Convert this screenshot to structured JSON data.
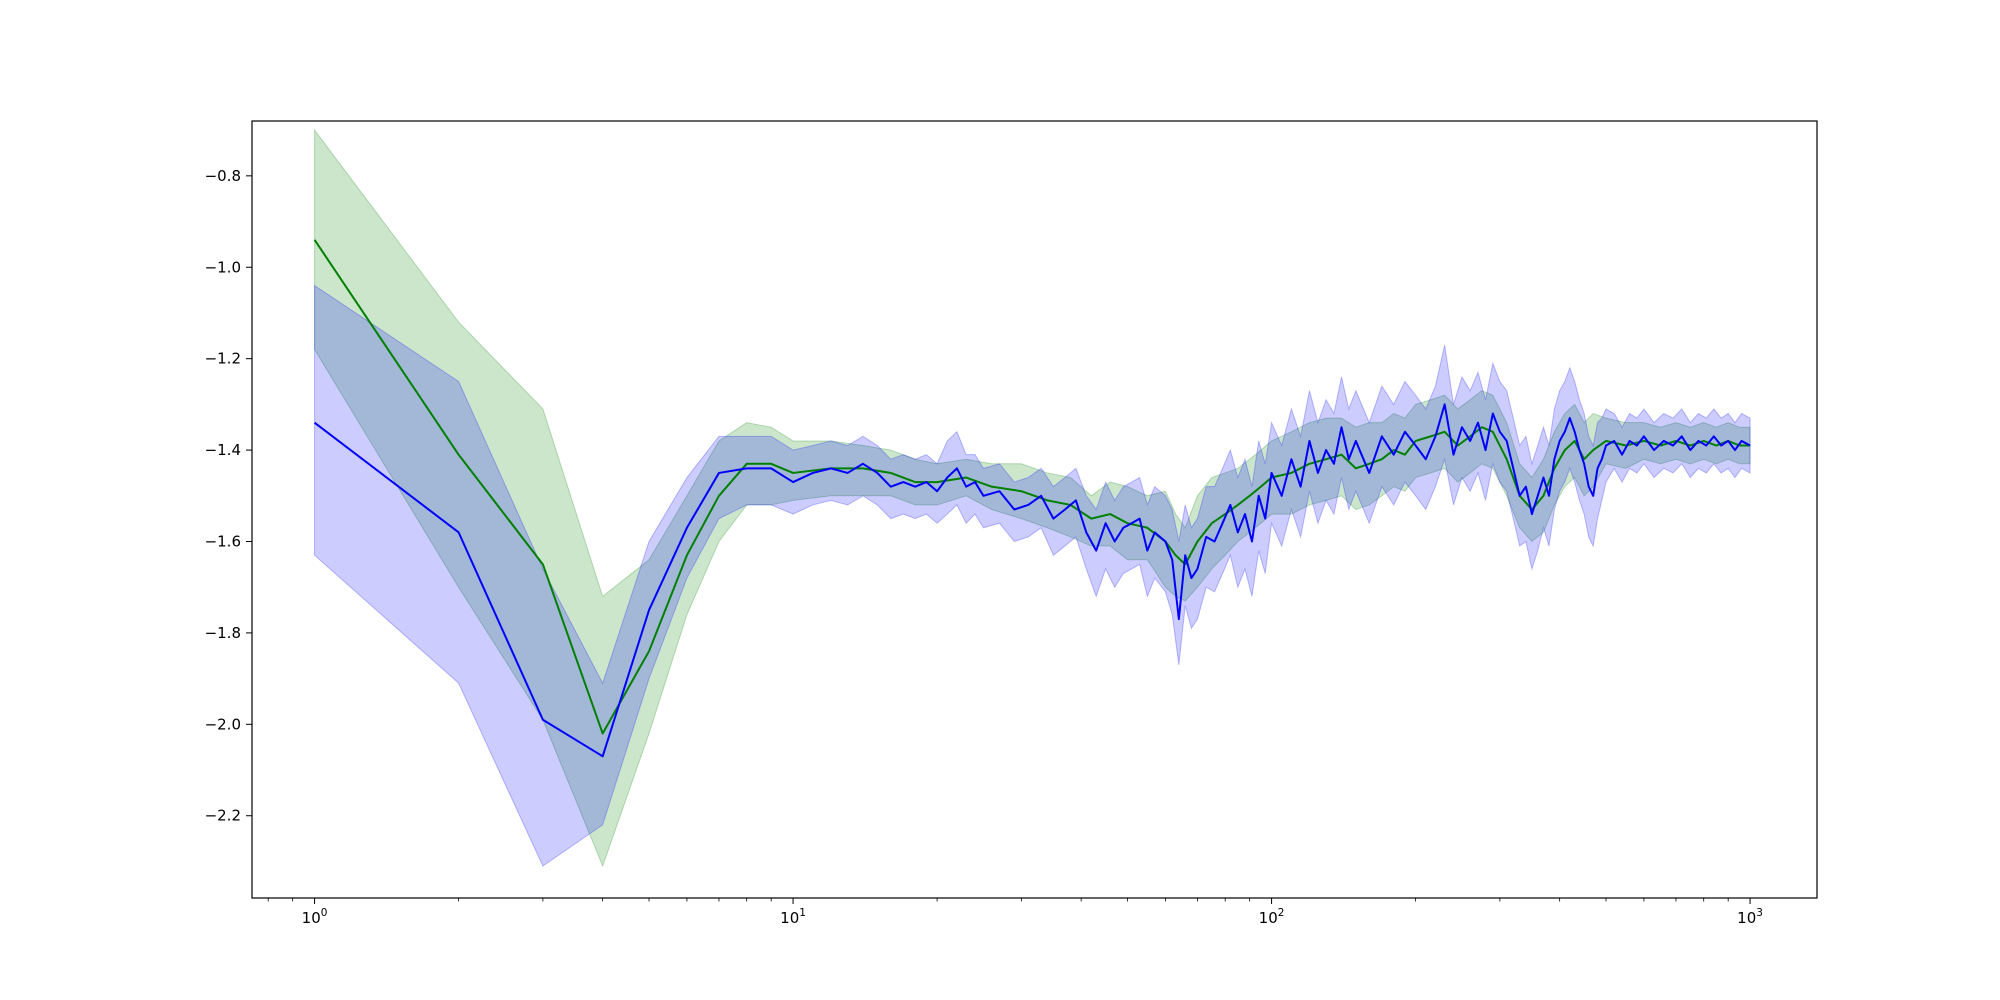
{
  "chart_data": {
    "type": "line",
    "title": "",
    "xlabel": "",
    "ylabel": "",
    "x_scale": "log",
    "xlim": [
      0.74,
      1380
    ],
    "ylim": [
      -2.38,
      -0.68
    ],
    "grid": false,
    "x_ticks": [
      {
        "value": 1,
        "base": "10",
        "exp": "0"
      },
      {
        "value": 10,
        "base": "10",
        "exp": "1"
      },
      {
        "value": 100,
        "base": "10",
        "exp": "2"
      },
      {
        "value": 1000,
        "base": "10",
        "exp": "3"
      }
    ],
    "y_ticks": [
      {
        "value": -0.8,
        "label": "−0.8"
      },
      {
        "value": -1.0,
        "label": "−1.0"
      },
      {
        "value": -1.2,
        "label": "−1.2"
      },
      {
        "value": -1.4,
        "label": "−1.4"
      },
      {
        "value": -1.6,
        "label": "−1.6"
      },
      {
        "value": -1.8,
        "label": "−1.8"
      },
      {
        "value": -2.0,
        "label": "−2.0"
      },
      {
        "value": -2.2,
        "label": "−2.2"
      }
    ],
    "series": [
      {
        "color": "#008000",
        "band_color": "#008000",
        "band_opacity": 0.2,
        "x": [
          1,
          2,
          3,
          4,
          5,
          6,
          7,
          8,
          9,
          10,
          12,
          14,
          16,
          18,
          20,
          23,
          26,
          30,
          34,
          38,
          42,
          46,
          50,
          55,
          60,
          63,
          66,
          70,
          75,
          80,
          85,
          90,
          95,
          100,
          110,
          120,
          130,
          140,
          150,
          160,
          170,
          180,
          190,
          200,
          215,
          230,
          245,
          260,
          275,
          290,
          310,
          330,
          350,
          370,
          390,
          410,
          430,
          450,
          470,
          500,
          550,
          600,
          650,
          700,
          750,
          800,
          850,
          900,
          950,
          1000
        ],
        "mean": [
          -0.94,
          -1.41,
          -1.65,
          -2.02,
          -1.84,
          -1.63,
          -1.5,
          -1.43,
          -1.43,
          -1.45,
          -1.44,
          -1.44,
          -1.45,
          -1.47,
          -1.47,
          -1.46,
          -1.48,
          -1.49,
          -1.51,
          -1.52,
          -1.55,
          -1.54,
          -1.56,
          -1.57,
          -1.6,
          -1.63,
          -1.65,
          -1.6,
          -1.56,
          -1.54,
          -1.52,
          -1.5,
          -1.48,
          -1.46,
          -1.45,
          -1.43,
          -1.42,
          -1.41,
          -1.44,
          -1.43,
          -1.42,
          -1.4,
          -1.41,
          -1.38,
          -1.37,
          -1.36,
          -1.39,
          -1.37,
          -1.35,
          -1.36,
          -1.42,
          -1.5,
          -1.53,
          -1.5,
          -1.44,
          -1.4,
          -1.38,
          -1.42,
          -1.4,
          -1.38,
          -1.39,
          -1.38,
          -1.39,
          -1.38,
          -1.39,
          -1.38,
          -1.39,
          -1.38,
          -1.39,
          -1.39
        ],
        "upper": [
          -0.7,
          -1.12,
          -1.31,
          -1.72,
          -1.64,
          -1.5,
          -1.38,
          -1.34,
          -1.35,
          -1.38,
          -1.38,
          -1.39,
          -1.4,
          -1.42,
          -1.43,
          -1.42,
          -1.43,
          -1.43,
          -1.45,
          -1.46,
          -1.5,
          -1.47,
          -1.48,
          -1.5,
          -1.49,
          -1.54,
          -1.57,
          -1.5,
          -1.46,
          -1.45,
          -1.44,
          -1.42,
          -1.4,
          -1.38,
          -1.36,
          -1.34,
          -1.33,
          -1.33,
          -1.35,
          -1.34,
          -1.34,
          -1.32,
          -1.33,
          -1.3,
          -1.29,
          -1.28,
          -1.31,
          -1.29,
          -1.27,
          -1.28,
          -1.34,
          -1.43,
          -1.46,
          -1.42,
          -1.36,
          -1.32,
          -1.3,
          -1.34,
          -1.32,
          -1.33,
          -1.34,
          -1.34,
          -1.35,
          -1.34,
          -1.35,
          -1.34,
          -1.35,
          -1.34,
          -1.35,
          -1.35
        ],
        "lower": [
          -1.18,
          -1.7,
          -1.99,
          -2.31,
          -2.02,
          -1.76,
          -1.6,
          -1.52,
          -1.52,
          -1.51,
          -1.5,
          -1.5,
          -1.5,
          -1.52,
          -1.52,
          -1.5,
          -1.53,
          -1.55,
          -1.57,
          -1.59,
          -1.61,
          -1.61,
          -1.64,
          -1.64,
          -1.7,
          -1.72,
          -1.73,
          -1.7,
          -1.66,
          -1.63,
          -1.6,
          -1.58,
          -1.56,
          -1.54,
          -1.54,
          -1.52,
          -1.51,
          -1.5,
          -1.53,
          -1.52,
          -1.5,
          -1.48,
          -1.49,
          -1.46,
          -1.45,
          -1.44,
          -1.47,
          -1.45,
          -1.43,
          -1.44,
          -1.5,
          -1.57,
          -1.6,
          -1.58,
          -1.52,
          -1.48,
          -1.46,
          -1.5,
          -1.48,
          -1.43,
          -1.44,
          -1.42,
          -1.43,
          -1.42,
          -1.43,
          -1.42,
          -1.43,
          -1.42,
          -1.43,
          -1.43
        ]
      },
      {
        "color": "#0000ff",
        "band_color": "#0000ff",
        "band_opacity": 0.2,
        "x": [
          1,
          2,
          3,
          4,
          5,
          6,
          7,
          8,
          9,
          10,
          11,
          12,
          13,
          14,
          15,
          16,
          17,
          18,
          19,
          20,
          21,
          22,
          23,
          24,
          25,
          27,
          29,
          31,
          33,
          35,
          37,
          39,
          41,
          43,
          45,
          47,
          49,
          51,
          53,
          55,
          57,
          60,
          62,
          64,
          66,
          68,
          70,
          73,
          76,
          79,
          82,
          85,
          88,
          91,
          94,
          97,
          100,
          105,
          110,
          115,
          120,
          125,
          130,
          135,
          140,
          145,
          150,
          160,
          170,
          180,
          190,
          200,
          210,
          220,
          230,
          240,
          250,
          260,
          270,
          280,
          290,
          300,
          310,
          320,
          330,
          340,
          350,
          360,
          370,
          380,
          390,
          400,
          410,
          420,
          430,
          440,
          450,
          460,
          470,
          480,
          490,
          500,
          520,
          540,
          560,
          580,
          600,
          630,
          660,
          690,
          720,
          750,
          780,
          810,
          840,
          870,
          900,
          930,
          960,
          1000
        ],
        "mean": [
          -1.34,
          -1.58,
          -1.99,
          -2.07,
          -1.75,
          -1.57,
          -1.45,
          -1.44,
          -1.44,
          -1.47,
          -1.45,
          -1.44,
          -1.45,
          -1.43,
          -1.45,
          -1.48,
          -1.47,
          -1.48,
          -1.47,
          -1.49,
          -1.46,
          -1.44,
          -1.48,
          -1.47,
          -1.5,
          -1.49,
          -1.53,
          -1.52,
          -1.5,
          -1.55,
          -1.53,
          -1.51,
          -1.58,
          -1.62,
          -1.56,
          -1.6,
          -1.57,
          -1.56,
          -1.55,
          -1.62,
          -1.58,
          -1.6,
          -1.64,
          -1.77,
          -1.63,
          -1.68,
          -1.66,
          -1.59,
          -1.6,
          -1.56,
          -1.52,
          -1.58,
          -1.54,
          -1.6,
          -1.5,
          -1.55,
          -1.45,
          -1.5,
          -1.42,
          -1.48,
          -1.38,
          -1.45,
          -1.4,
          -1.43,
          -1.35,
          -1.42,
          -1.38,
          -1.45,
          -1.37,
          -1.41,
          -1.36,
          -1.39,
          -1.42,
          -1.37,
          -1.3,
          -1.41,
          -1.35,
          -1.38,
          -1.34,
          -1.4,
          -1.32,
          -1.36,
          -1.38,
          -1.44,
          -1.5,
          -1.48,
          -1.54,
          -1.5,
          -1.46,
          -1.5,
          -1.42,
          -1.38,
          -1.36,
          -1.33,
          -1.36,
          -1.4,
          -1.43,
          -1.48,
          -1.5,
          -1.44,
          -1.42,
          -1.39,
          -1.38,
          -1.41,
          -1.38,
          -1.39,
          -1.37,
          -1.4,
          -1.38,
          -1.39,
          -1.37,
          -1.4,
          -1.38,
          -1.39,
          -1.37,
          -1.39,
          -1.38,
          -1.4,
          -1.38,
          -1.39
        ],
        "upper": [
          -1.04,
          -1.25,
          -1.66,
          -1.91,
          -1.6,
          -1.46,
          -1.37,
          -1.37,
          -1.37,
          -1.4,
          -1.39,
          -1.38,
          -1.39,
          -1.37,
          -1.39,
          -1.42,
          -1.41,
          -1.42,
          -1.41,
          -1.43,
          -1.38,
          -1.36,
          -1.41,
          -1.41,
          -1.44,
          -1.43,
          -1.47,
          -1.46,
          -1.44,
          -1.48,
          -1.46,
          -1.44,
          -1.5,
          -1.53,
          -1.47,
          -1.51,
          -1.48,
          -1.47,
          -1.46,
          -1.52,
          -1.48,
          -1.5,
          -1.53,
          -1.6,
          -1.52,
          -1.57,
          -1.55,
          -1.48,
          -1.48,
          -1.44,
          -1.4,
          -1.46,
          -1.42,
          -1.48,
          -1.38,
          -1.43,
          -1.34,
          -1.39,
          -1.31,
          -1.37,
          -1.27,
          -1.34,
          -1.29,
          -1.32,
          -1.24,
          -1.31,
          -1.27,
          -1.34,
          -1.26,
          -1.3,
          -1.25,
          -1.28,
          -1.31,
          -1.26,
          -1.17,
          -1.3,
          -1.24,
          -1.27,
          -1.23,
          -1.29,
          -1.21,
          -1.25,
          -1.27,
          -1.33,
          -1.39,
          -1.37,
          -1.43,
          -1.39,
          -1.35,
          -1.39,
          -1.31,
          -1.27,
          -1.25,
          -1.22,
          -1.25,
          -1.29,
          -1.32,
          -1.37,
          -1.39,
          -1.34,
          -1.33,
          -1.31,
          -1.32,
          -1.35,
          -1.32,
          -1.33,
          -1.31,
          -1.34,
          -1.32,
          -1.33,
          -1.31,
          -1.34,
          -1.32,
          -1.33,
          -1.31,
          -1.33,
          -1.32,
          -1.34,
          -1.32,
          -1.33
        ],
        "lower": [
          -1.63,
          -1.91,
          -2.31,
          -2.22,
          -1.9,
          -1.68,
          -1.55,
          -1.52,
          -1.52,
          -1.54,
          -1.52,
          -1.51,
          -1.52,
          -1.5,
          -1.52,
          -1.55,
          -1.54,
          -1.55,
          -1.54,
          -1.56,
          -1.54,
          -1.52,
          -1.56,
          -1.54,
          -1.57,
          -1.56,
          -1.6,
          -1.59,
          -1.57,
          -1.63,
          -1.61,
          -1.59,
          -1.66,
          -1.72,
          -1.66,
          -1.7,
          -1.67,
          -1.66,
          -1.65,
          -1.72,
          -1.68,
          -1.71,
          -1.76,
          -1.87,
          -1.74,
          -1.79,
          -1.77,
          -1.7,
          -1.71,
          -1.67,
          -1.63,
          -1.7,
          -1.66,
          -1.72,
          -1.62,
          -1.67,
          -1.56,
          -1.61,
          -1.53,
          -1.59,
          -1.49,
          -1.56,
          -1.51,
          -1.54,
          -1.46,
          -1.53,
          -1.49,
          -1.56,
          -1.48,
          -1.52,
          -1.47,
          -1.5,
          -1.53,
          -1.48,
          -1.42,
          -1.52,
          -1.46,
          -1.49,
          -1.45,
          -1.51,
          -1.43,
          -1.47,
          -1.49,
          -1.55,
          -1.61,
          -1.6,
          -1.66,
          -1.62,
          -1.57,
          -1.61,
          -1.53,
          -1.49,
          -1.47,
          -1.44,
          -1.47,
          -1.51,
          -1.54,
          -1.59,
          -1.61,
          -1.55,
          -1.51,
          -1.47,
          -1.44,
          -1.47,
          -1.44,
          -1.45,
          -1.43,
          -1.46,
          -1.44,
          -1.45,
          -1.43,
          -1.46,
          -1.44,
          -1.45,
          -1.43,
          -1.45,
          -1.44,
          -1.46,
          -1.44,
          -1.45
        ]
      }
    ]
  }
}
